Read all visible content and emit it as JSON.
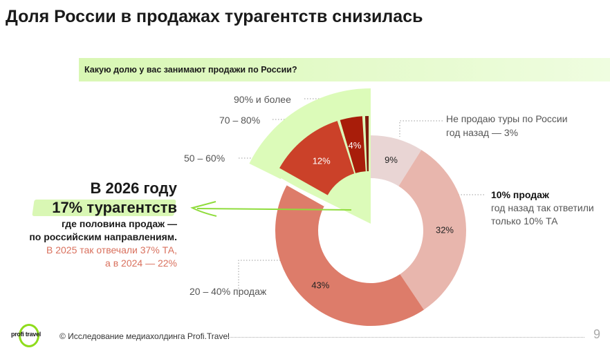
{
  "title": "Доля России в продажах турагентств снизилась",
  "question": "Какую долю у вас занимают продажи по России?",
  "chart_data": {
    "type": "pie",
    "variant": "donut with exploded sector",
    "slices": [
      {
        "label": "Не продаю туры по России",
        "value": 9,
        "value_label": "9%",
        "color": "#e9d5d4",
        "note": "год назад — 3%"
      },
      {
        "label": "10% продаж",
        "value": 32,
        "value_label": "32%",
        "color": "#e8b6ad",
        "note": "год назад так ответили только 10% ТА"
      },
      {
        "label": "20 – 40% продаж",
        "value": 43,
        "value_label": "43%",
        "color": "#dd7c6a"
      },
      {
        "label": "50 – 60%",
        "value": 12,
        "value_label": "12%",
        "color": "#cb4129",
        "exploded": true
      },
      {
        "label": "70 – 80%",
        "value": 4,
        "value_label": "4%",
        "color": "#a81d0a",
        "exploded": true
      },
      {
        "label": "90% и более",
        "value": 1,
        "value_label": "",
        "color": "#7c1a0c",
        "exploded": true
      }
    ],
    "highlight_color": "#dcfbb9"
  },
  "labels": {
    "none": "Не продаю туры по России",
    "none_note": "год назад — 3%",
    "p10": "10% продаж",
    "p10_note1": "год назад так ответили",
    "p10_note2": "только 10% ТА",
    "p20": "20 – 40% продаж",
    "p50": "50 – 60%",
    "p70": "70 – 80%",
    "p90": "90% и более"
  },
  "callout": {
    "line1": "В 2026 году",
    "line2": "17% турагентств",
    "line3": "где половина продаж —",
    "line4": "по российским направлениям.",
    "line5": "В 2025 так отвечали 37% ТА,",
    "line6": "а в 2024 — 22%"
  },
  "footer": {
    "logo": "profi travel",
    "text": "© Исследование медиахолдинга Profi.Travel",
    "page": "9"
  }
}
